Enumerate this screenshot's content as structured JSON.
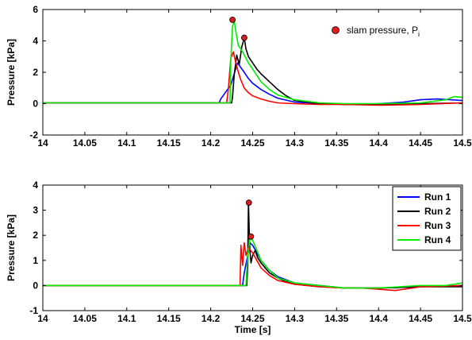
{
  "chart_data": [
    {
      "type": "line",
      "xlabel": "",
      "ylabel": "Pressure [kPa]",
      "xlim": [
        14,
        14.5
      ],
      "ylim": [
        -2,
        6
      ],
      "xticks": [
        14,
        14.05,
        14.1,
        14.15,
        14.2,
        14.25,
        14.3,
        14.35,
        14.4,
        14.45,
        14.5
      ],
      "xtick_labels": [
        "14",
        "14.05",
        "14.1",
        "14.15",
        "14.2",
        "14.25",
        "14.3",
        "14.35",
        "14.4",
        "14.45",
        "14.5"
      ],
      "yticks": [
        -2,
        0,
        2,
        4,
        6
      ],
      "ytick_labels": [
        "-2",
        "0",
        "2",
        "4",
        "6"
      ],
      "grid": false,
      "legend_position": "top-right",
      "legend": [
        {
          "label": "slam pressure, P",
          "subscript": "i",
          "color": "#e31a1c",
          "marker": "circle"
        }
      ],
      "series": [
        {
          "color": "#0000ff",
          "x": [
            14.0,
            14.21,
            14.212,
            14.216,
            14.22,
            14.224,
            14.228,
            14.232,
            14.236,
            14.24,
            14.245,
            14.25,
            14.26,
            14.27,
            14.28,
            14.3,
            14.33,
            14.36,
            14.4,
            14.43,
            14.45,
            14.47,
            14.5
          ],
          "y": [
            0.05,
            0.05,
            0.3,
            0.6,
            0.9,
            1.2,
            1.9,
            2.6,
            2.3,
            2.0,
            1.6,
            1.3,
            0.9,
            0.6,
            0.35,
            0.1,
            0.0,
            -0.05,
            0.0,
            0.1,
            0.25,
            0.3,
            0.2
          ]
        },
        {
          "color": "#000000",
          "x": [
            14.0,
            14.225,
            14.226,
            14.228,
            14.231,
            14.234,
            14.237,
            14.24,
            14.242,
            14.245,
            14.25,
            14.255,
            14.26,
            14.27,
            14.28,
            14.29,
            14.3,
            14.33,
            14.36,
            14.4,
            14.45,
            14.5
          ],
          "y": [
            0.05,
            0.05,
            0.4,
            1.8,
            3.1,
            2.5,
            3.6,
            4.2,
            3.5,
            3.0,
            2.6,
            2.2,
            1.9,
            1.4,
            0.9,
            0.5,
            0.2,
            0.0,
            -0.05,
            -0.05,
            0.0,
            0.05
          ]
        },
        {
          "color": "#ff0000",
          "x": [
            14.0,
            14.219,
            14.221,
            14.224,
            14.227,
            14.23,
            14.233,
            14.236,
            14.24,
            14.245,
            14.25,
            14.26,
            14.27,
            14.28,
            14.3,
            14.33,
            14.36,
            14.4,
            14.45,
            14.5
          ],
          "y": [
            0.05,
            0.05,
            0.9,
            2.9,
            3.3,
            2.6,
            2.0,
            1.5,
            1.0,
            0.7,
            0.5,
            0.3,
            0.15,
            0.05,
            0.0,
            -0.05,
            -0.05,
            -0.1,
            -0.05,
            0.05
          ]
        },
        {
          "color": "#00ee00",
          "x": [
            14.0,
            14.223,
            14.224,
            14.226,
            14.228,
            14.23,
            14.233,
            14.237,
            14.24,
            14.245,
            14.25,
            14.255,
            14.26,
            14.27,
            14.28,
            14.3,
            14.33,
            14.36,
            14.4,
            14.45,
            14.48,
            14.49,
            14.5
          ],
          "y": [
            0.05,
            0.05,
            2.8,
            4.9,
            5.3,
            4.6,
            3.7,
            3.4,
            3.1,
            2.6,
            2.2,
            1.8,
            1.4,
            0.9,
            0.55,
            0.25,
            0.05,
            0.0,
            0.0,
            0.05,
            0.25,
            0.45,
            0.4
          ]
        }
      ],
      "peaks": [
        {
          "x": 14.226,
          "y": 5.35
        },
        {
          "x": 14.24,
          "y": 4.2
        }
      ]
    },
    {
      "type": "line",
      "xlabel": "Time [s]",
      "ylabel": "Pressure [kPa]",
      "xlim": [
        14,
        14.5
      ],
      "ylim": [
        -1,
        4
      ],
      "xticks": [
        14,
        14.05,
        14.1,
        14.15,
        14.2,
        14.25,
        14.3,
        14.35,
        14.4,
        14.45,
        14.5
      ],
      "xtick_labels": [
        "14",
        "14.05",
        "14.1",
        "14.15",
        "14.2",
        "14.25",
        "14.3",
        "14.35",
        "14.4",
        "14.45",
        "14.5"
      ],
      "yticks": [
        -1,
        0,
        1,
        2,
        3,
        4
      ],
      "ytick_labels": [
        "-1",
        "0",
        "1",
        "2",
        "3",
        "4"
      ],
      "grid": false,
      "legend_position": "top-right",
      "legend": [
        {
          "label": "Run 1",
          "color": "#0000ff"
        },
        {
          "label": "Run 2",
          "color": "#000000"
        },
        {
          "label": "Run 3",
          "color": "#ff0000"
        },
        {
          "label": "Run 4",
          "color": "#00ee00"
        }
      ],
      "series": [
        {
          "name": "Run 1",
          "color": "#0000ff",
          "x": [
            14.0,
            14.238,
            14.24,
            14.244,
            14.247,
            14.25,
            14.255,
            14.26,
            14.27,
            14.28,
            14.3,
            14.33,
            14.36,
            14.4,
            14.45,
            14.5
          ],
          "y": [
            0.0,
            0.0,
            0.5,
            1.2,
            1.7,
            1.6,
            1.3,
            1.0,
            0.6,
            0.35,
            0.1,
            0.0,
            -0.1,
            -0.1,
            -0.05,
            0.0
          ]
        },
        {
          "name": "Run 2",
          "color": "#000000",
          "x": [
            14.0,
            14.243,
            14.244,
            14.245,
            14.2465,
            14.248,
            14.25,
            14.253,
            14.256,
            14.26,
            14.265,
            14.27,
            14.28,
            14.29,
            14.3,
            14.33,
            14.36,
            14.4,
            14.45,
            14.5
          ],
          "y": [
            0.0,
            0.0,
            0.8,
            3.3,
            1.5,
            0.9,
            1.2,
            1.4,
            1.1,
            0.9,
            0.7,
            0.5,
            0.3,
            0.15,
            0.05,
            -0.05,
            -0.1,
            -0.1,
            -0.05,
            -0.05
          ]
        },
        {
          "name": "Run 3",
          "color": "#ff0000",
          "x": [
            14.0,
            14.235,
            14.236,
            14.238,
            14.24,
            14.242,
            14.245,
            14.25,
            14.255,
            14.26,
            14.27,
            14.28,
            14.3,
            14.33,
            14.36,
            14.38,
            14.4,
            14.42,
            14.45,
            14.5
          ],
          "y": [
            0.0,
            0.0,
            1.6,
            0.8,
            1.7,
            1.2,
            1.5,
            1.3,
            1.0,
            0.7,
            0.4,
            0.2,
            0.05,
            -0.05,
            -0.1,
            -0.1,
            -0.15,
            -0.2,
            -0.05,
            0.0
          ]
        },
        {
          "name": "Run 4",
          "color": "#00ee00",
          "x": [
            14.0,
            14.242,
            14.244,
            14.247,
            14.25,
            14.255,
            14.26,
            14.27,
            14.28,
            14.3,
            14.33,
            14.36,
            14.4,
            14.45,
            14.48,
            14.5
          ],
          "y": [
            0.0,
            0.0,
            1.2,
            1.9,
            1.8,
            1.4,
            1.0,
            0.6,
            0.3,
            0.1,
            0.0,
            -0.1,
            -0.1,
            0.0,
            0.0,
            0.1
          ]
        }
      ],
      "peaks": [
        {
          "x": 14.2455,
          "y": 3.3
        },
        {
          "x": 14.248,
          "y": 1.95
        }
      ]
    }
  ]
}
